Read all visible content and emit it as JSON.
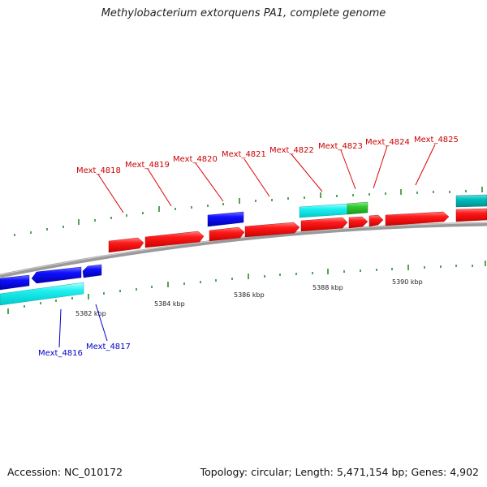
{
  "title": "Methylobacterium extorquens PA1, complete genome",
  "footer": {
    "accession": "Accession: NC_010172",
    "summary": "Topology: circular; Length: 5,471,154 bp; Genes: 4,902"
  },
  "colors": {
    "forward_cds": "#ff0000",
    "reverse_cds": "#0000ff",
    "reverse_rna": "#00ffff",
    "forward_rna": "#22cc22",
    "dark_teal": "#00bbbb",
    "forward_label": "#cc0000",
    "reverse_label": "#0000cc",
    "tick": "#228822",
    "backbone": "#888888"
  },
  "scale_labels": [
    "5382 kbp",
    "5384 kbp",
    "5386 kbp",
    "5388 kbp",
    "5390 kbp"
  ],
  "forward_labels": [
    "Mext_4818",
    "Mext_4819",
    "Mext_4820",
    "Mext_4821",
    "Mext_4822",
    "Mext_4823",
    "Mext_4824",
    "Mext_4825"
  ],
  "reverse_labels": [
    "Mext_4816",
    "Mext_4817"
  ]
}
